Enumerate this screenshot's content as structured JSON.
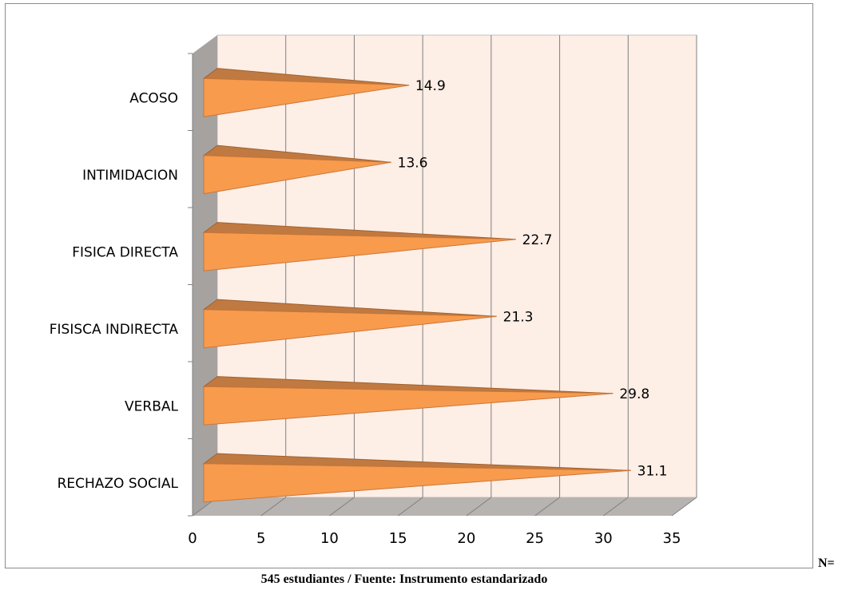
{
  "chart_data": {
    "type": "bar",
    "orientation": "horizontal",
    "style": "3d-cone",
    "categories": [
      "ACOSO",
      "INTIMIDACION",
      "FISICA DIRECTA",
      "FISISCA INDIRECTA",
      "VERBAL",
      "RECHAZO SOCIAL"
    ],
    "values": [
      14.9,
      13.6,
      22.7,
      21.3,
      29.8,
      31.1
    ],
    "xlim": [
      0,
      35
    ],
    "x_ticks": [
      0,
      5,
      10,
      15,
      20,
      25,
      30,
      35
    ],
    "grid": true,
    "legend": "none",
    "colors": {
      "bar_front": "#f89b4d",
      "bar_top": "#c07a41",
      "plot_wall": "#fdeee6",
      "side_wall": "#a6a2a0",
      "floor": "#b7b3b1",
      "gridline": "#808080"
    }
  },
  "n_label": "N=",
  "footer_note": "545 estudiantes / Fuente: Instrumento estandarizado"
}
